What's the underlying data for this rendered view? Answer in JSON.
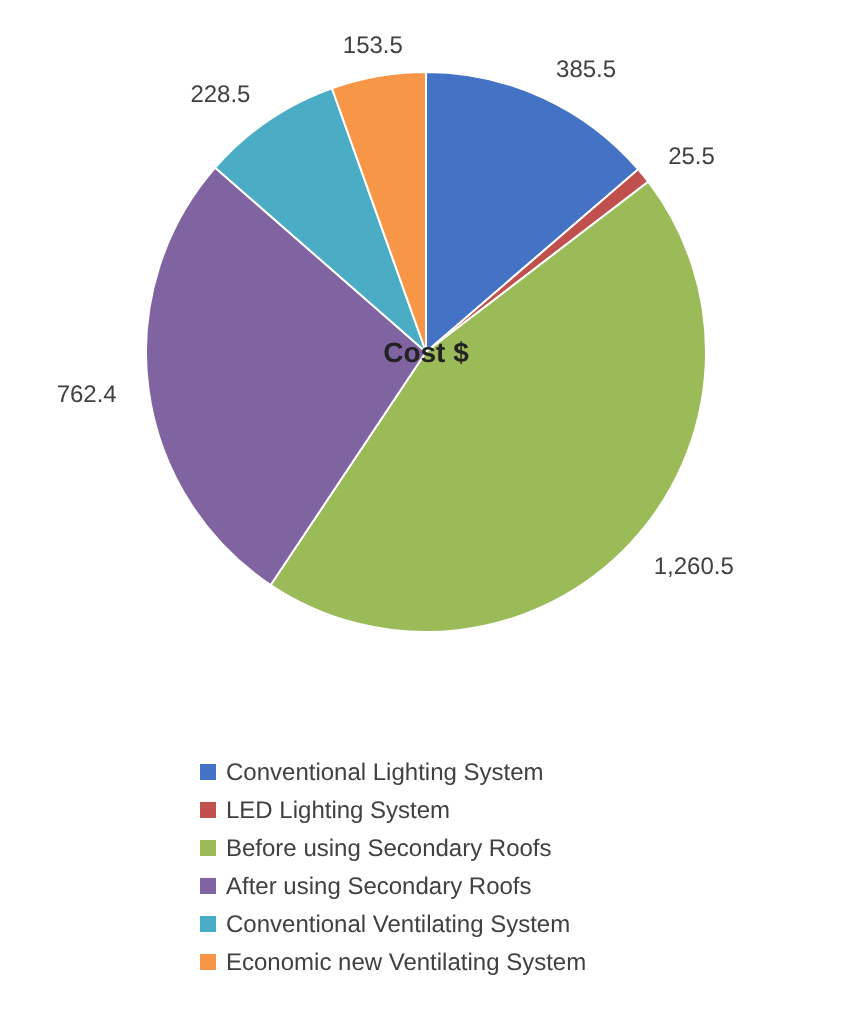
{
  "chart_data": {
    "type": "pie",
    "title": "Cost $",
    "categories": [
      "Conventional Lighting System",
      "LED Lighting System",
      "Before using Secondary Roofs",
      "After using Secondary Roofs",
      "Conventional Ventilating System",
      "Economic new Ventilating System"
    ],
    "values": [
      385.5,
      25.5,
      1260.5,
      762.4,
      228.5,
      153.5
    ],
    "colors": [
      "#4472c4",
      "#c0504d",
      "#9bbb59",
      "#8064a2",
      "#4bacc6",
      "#f79646"
    ],
    "value_labels": [
      "385.5",
      "25.5",
      "1,260.5",
      "762.4",
      "228.5",
      "153.5"
    ],
    "legend": "bottom"
  }
}
